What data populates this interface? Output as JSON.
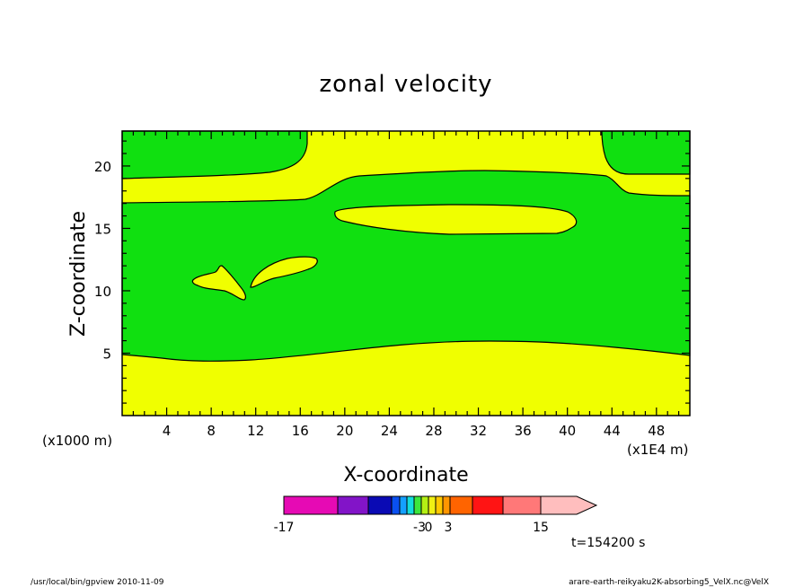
{
  "chart_data": {
    "type": "contour",
    "title": "zonal velocity",
    "xlabel": "X-coordinate",
    "ylabel": "Z-coordinate",
    "x_unit_note": "(x1E4 m)",
    "y_unit_note": "(x1000 m)",
    "xlim": [
      0,
      51
    ],
    "ylim": [
      0,
      22.8
    ],
    "xticks": [
      "4",
      "8",
      "12",
      "16",
      "20",
      "24",
      "28",
      "32",
      "36",
      "40",
      "44",
      "48"
    ],
    "yticks": [
      "5",
      "10",
      "15",
      "20"
    ],
    "colorbar": {
      "ticks": [
        "-17",
        "-3",
        "0",
        "3",
        "15"
      ],
      "levels": [
        -17,
        -12,
        -7,
        -4,
        -3,
        -2,
        -1,
        0,
        1,
        2,
        3,
        5,
        8,
        11,
        15
      ],
      "colors": [
        "#e60ab4",
        "#8214c8",
        "#0a0ab4",
        "#0a50f0",
        "#14a0ff",
        "#14dcdc",
        "#3ce63c",
        "#b4f014",
        "#f0f014",
        "#ffc800",
        "#ff9600",
        "#ff6400",
        "#ff1414",
        "#ff7878",
        "#ffbebe"
      ]
    },
    "regions": [
      {
        "value_band": "0 to 1",
        "color": "#10e010"
      },
      {
        "value_band": "1 to 2",
        "color": "#f0ff00"
      }
    ],
    "time_label": "t=154200 s"
  },
  "footer": {
    "left": "/usr/local/bin/gpview  2010-11-09",
    "right": "arare-earth-reikyaku2K-absorbing5_VelX.nc@VelX"
  }
}
